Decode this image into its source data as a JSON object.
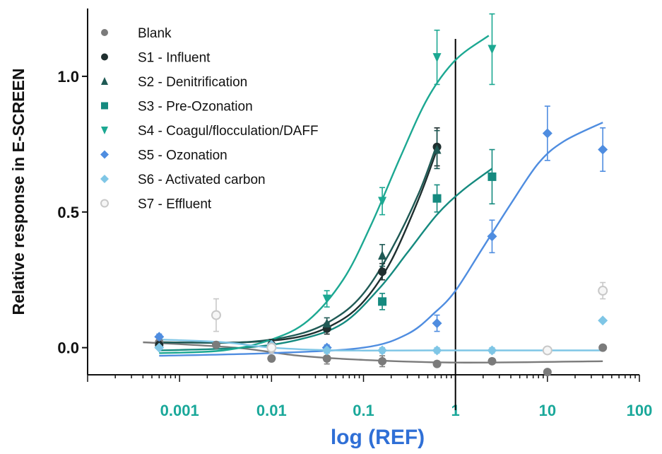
{
  "chart_data": {
    "type": "scatter",
    "title": "",
    "xlabel": "log (REF)",
    "ylabel": "Relative response in E-SCREEN",
    "x_scale": "log",
    "xlim": [
      0.0001,
      100
    ],
    "ylim": [
      -0.1,
      1.25
    ],
    "x_ticks": [
      {
        "value": 0.001,
        "label": "0.001"
      },
      {
        "value": 0.01,
        "label": "0.01"
      },
      {
        "value": 0.1,
        "label": "0.1"
      },
      {
        "value": 1,
        "label": "1"
      },
      {
        "value": 10,
        "label": "10"
      },
      {
        "value": 100,
        "label": "100"
      }
    ],
    "y_ticks": [
      {
        "value": 0.0,
        "label": "0.0"
      },
      {
        "value": 0.5,
        "label": "0.5"
      },
      {
        "value": 1.0,
        "label": "1.0"
      }
    ],
    "reference_line_x": 1,
    "legend_position": "top-left",
    "grid": false,
    "series": [
      {
        "name": "Blank",
        "color": "#7b7b7b",
        "marker": "circle",
        "fit": "sigmoid",
        "points": [
          [
            0.0006,
            0.02,
            0.01
          ],
          [
            0.0025,
            0.01,
            0.01
          ],
          [
            0.01,
            -0.04,
            0.01
          ],
          [
            0.04,
            -0.04,
            0.02
          ],
          [
            0.16,
            -0.05,
            0.02
          ],
          [
            0.63,
            -0.06,
            0.01
          ],
          [
            2.5,
            -0.05,
            0.01
          ],
          [
            10,
            -0.09,
            0.0
          ],
          [
            40,
            0.0,
            0.0
          ]
        ],
        "curve": [
          [
            0.0004,
            0.02
          ],
          [
            0.004,
            0.0
          ],
          [
            0.02,
            -0.03
          ],
          [
            0.1,
            -0.045
          ],
          [
            1,
            -0.055
          ],
          [
            40,
            -0.05
          ]
        ]
      },
      {
        "name": "S1 - Influent",
        "color": "#1f2f2f",
        "marker": "circle",
        "fit": "sigmoid",
        "points": [
          [
            0.0006,
            0.01,
            0.01
          ],
          [
            0.01,
            0.01,
            0.02
          ],
          [
            0.04,
            0.07,
            0.02
          ],
          [
            0.16,
            0.28,
            0.03
          ],
          [
            0.63,
            0.74,
            0.07
          ]
        ],
        "curve": [
          [
            0.0006,
            0.02
          ],
          [
            0.005,
            0.02
          ],
          [
            0.02,
            0.04
          ],
          [
            0.05,
            0.09
          ],
          [
            0.1,
            0.17
          ],
          [
            0.2,
            0.32
          ],
          [
            0.4,
            0.55
          ],
          [
            0.63,
            0.73
          ]
        ]
      },
      {
        "name": "S2 - Denitrification",
        "color": "#1f5a55",
        "marker": "triangle-up",
        "fit": "sigmoid",
        "points": [
          [
            0.04,
            0.09,
            0.02
          ],
          [
            0.16,
            0.34,
            0.04
          ],
          [
            0.63,
            0.73,
            0.07
          ]
        ],
        "curve": [
          [
            0.0006,
            0.02
          ],
          [
            0.005,
            0.02
          ],
          [
            0.02,
            0.05
          ],
          [
            0.05,
            0.11
          ],
          [
            0.1,
            0.2
          ],
          [
            0.2,
            0.36
          ],
          [
            0.4,
            0.57
          ],
          [
            0.63,
            0.75
          ]
        ]
      },
      {
        "name": "S3 - Pre-Ozonation",
        "color": "#158a7f",
        "marker": "square",
        "fit": "sigmoid",
        "points": [
          [
            0.16,
            0.17,
            0.03
          ],
          [
            0.63,
            0.55,
            0.05
          ],
          [
            2.5,
            0.63,
            0.1
          ]
        ],
        "curve": [
          [
            0.0006,
            -0.01
          ],
          [
            0.005,
            0.0
          ],
          [
            0.02,
            0.03
          ],
          [
            0.06,
            0.09
          ],
          [
            0.15,
            0.22
          ],
          [
            0.3,
            0.35
          ],
          [
            0.63,
            0.49
          ],
          [
            1.2,
            0.58
          ],
          [
            2.5,
            0.66
          ]
        ]
      },
      {
        "name": "S4 - Coagul/flocculation/DAFF",
        "color": "#1ca892",
        "marker": "triangle-down",
        "fit": "sigmoid",
        "points": [
          [
            0.04,
            0.18,
            0.03
          ],
          [
            0.16,
            0.54,
            0.05
          ],
          [
            0.63,
            1.07,
            0.1
          ],
          [
            2.5,
            1.1,
            0.13
          ]
        ],
        "curve": [
          [
            0.0006,
            -0.02
          ],
          [
            0.003,
            -0.01
          ],
          [
            0.01,
            0.03
          ],
          [
            0.025,
            0.1
          ],
          [
            0.06,
            0.25
          ],
          [
            0.12,
            0.45
          ],
          [
            0.25,
            0.7
          ],
          [
            0.5,
            0.92
          ],
          [
            1.0,
            1.06
          ],
          [
            2.3,
            1.15
          ]
        ]
      },
      {
        "name": "S5 - Ozonation",
        "color": "#4f8de0",
        "marker": "diamond",
        "fit": "sigmoid",
        "points": [
          [
            0.0006,
            0.04,
            0.01
          ],
          [
            0.04,
            0.0,
            0.01
          ],
          [
            0.63,
            0.09,
            0.03
          ],
          [
            2.5,
            0.41,
            0.06
          ],
          [
            10,
            0.79,
            0.1
          ],
          [
            40,
            0.73,
            0.08
          ]
        ],
        "curve": [
          [
            0.0006,
            -0.03
          ],
          [
            0.01,
            -0.02
          ],
          [
            0.1,
            0.0
          ],
          [
            0.3,
            0.05
          ],
          [
            0.6,
            0.13
          ],
          [
            1.0,
            0.21
          ],
          [
            2.0,
            0.37
          ],
          [
            4.0,
            0.53
          ],
          [
            8.0,
            0.68
          ],
          [
            15,
            0.76
          ],
          [
            40,
            0.83
          ]
        ]
      },
      {
        "name": "S6 - Activated carbon",
        "color": "#7fc6e6",
        "marker": "diamond",
        "fit": "sigmoid",
        "points": [
          [
            0.0006,
            0.0,
            0.0
          ],
          [
            0.01,
            0.01,
            0.01
          ],
          [
            0.04,
            -0.01,
            0.01
          ],
          [
            0.16,
            -0.01,
            0.01
          ],
          [
            0.63,
            -0.01,
            0.01
          ],
          [
            2.5,
            -0.01,
            0.01
          ],
          [
            10,
            -0.01,
            0.01
          ],
          [
            40,
            0.1,
            0.0
          ]
        ],
        "curve": [
          [
            0.0006,
            0.03
          ],
          [
            0.003,
            0.02
          ],
          [
            0.01,
            0.0
          ],
          [
            0.05,
            -0.01
          ],
          [
            0.5,
            -0.01
          ],
          [
            40,
            -0.01
          ]
        ]
      },
      {
        "name": "S7 - Effluent",
        "color": "#c8c8c8",
        "marker": "circle-open",
        "fit": "none",
        "points": [
          [
            0.0025,
            0.12,
            0.06
          ],
          [
            0.01,
            0.0,
            0.02
          ],
          [
            10,
            -0.01,
            0.01
          ],
          [
            40,
            0.21,
            0.03
          ]
        ],
        "curve": []
      }
    ]
  }
}
